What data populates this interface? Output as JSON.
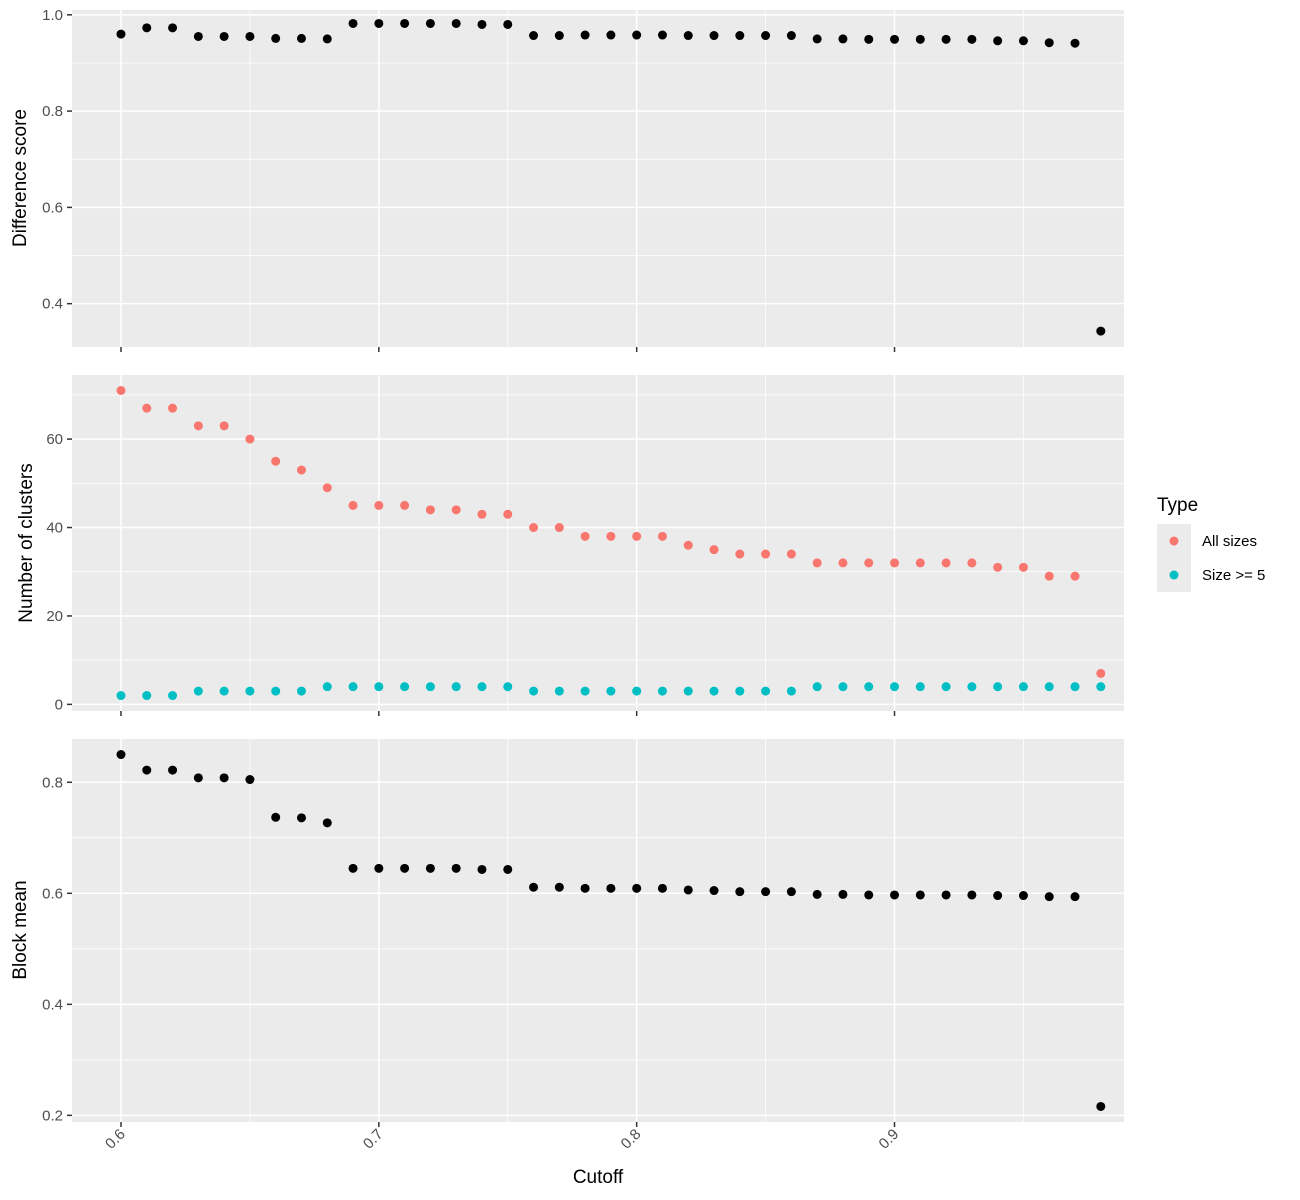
{
  "chart_data": {
    "type": "scatter",
    "x": {
      "label": "Cutoff",
      "range": [
        0.581,
        0.989
      ],
      "ticks": [
        0.6,
        0.7,
        0.8,
        0.9
      ],
      "tick_labels": [
        "0.6",
        "0.7",
        "0.8",
        "0.9"
      ],
      "minor_ticks": [
        0.65,
        0.75,
        0.85,
        0.95
      ],
      "tick_label_rotation": "45 degrees",
      "values": [
        0.6,
        0.61,
        0.62,
        0.63,
        0.64,
        0.65,
        0.66,
        0.67,
        0.68,
        0.69,
        0.7,
        0.71,
        0.72,
        0.73,
        0.74,
        0.75,
        0.76,
        0.77,
        0.78,
        0.79,
        0.8,
        0.81,
        0.82,
        0.83,
        0.84,
        0.85,
        0.86,
        0.87,
        0.88,
        0.89,
        0.9,
        0.91,
        0.92,
        0.93,
        0.94,
        0.95,
        0.96,
        0.97,
        0.98
      ]
    },
    "panels": [
      {
        "id": "difference",
        "ylabel": "Difference score",
        "ylim": [
          0.31,
          1.01
        ],
        "yticks": [
          0.4,
          0.6,
          0.8,
          1.0
        ],
        "ytick_labels": [
          "0.4",
          "0.6",
          "0.8",
          "1.0"
        ],
        "yminor": [
          0.3,
          0.5,
          0.7,
          0.9
        ],
        "series": [
          {
            "color": "#000000",
            "values": [
              0.96,
              0.973,
              0.973,
              0.955,
              0.955,
              0.955,
              0.951,
              0.951,
              0.95,
              0.982,
              0.982,
              0.982,
              0.982,
              0.982,
              0.98,
              0.98,
              0.957,
              0.957,
              0.958,
              0.958,
              0.958,
              0.958,
              0.957,
              0.957,
              0.957,
              0.957,
              0.957,
              0.95,
              0.95,
              0.949,
              0.949,
              0.949,
              0.949,
              0.949,
              0.946,
              0.946,
              0.942,
              0.941,
              0.343
            ]
          }
        ]
      },
      {
        "id": "clusters",
        "ylabel": "Number of clusters",
        "ylim": [
          -1.5,
          74.5
        ],
        "yticks": [
          0,
          20,
          40,
          60
        ],
        "ytick_labels": [
          "0",
          "20",
          "40",
          "60"
        ],
        "yminor": [
          10,
          30,
          50,
          70
        ],
        "series": [
          {
            "name": "All sizes",
            "color": "#F8766D",
            "values": [
              71,
              67,
              67,
              63,
              63,
              60,
              55,
              53,
              49,
              45,
              45,
              45,
              44,
              44,
              43,
              43,
              40,
              40,
              38,
              38,
              38,
              38,
              36,
              35,
              34,
              34,
              34,
              32,
              32,
              32,
              32,
              32,
              32,
              32,
              31,
              31,
              29,
              29,
              7
            ]
          },
          {
            "name": "Size >= 5",
            "color": "#00BFC4",
            "values": [
              2,
              2,
              2,
              3,
              3,
              3,
              3,
              3,
              4,
              4,
              4,
              4,
              4,
              4,
              4,
              4,
              3,
              3,
              3,
              3,
              3,
              3,
              3,
              3,
              3,
              3,
              3,
              4,
              4,
              4,
              4,
              4,
              4,
              4,
              4,
              4,
              4,
              4,
              4
            ]
          }
        ]
      },
      {
        "id": "blockmean",
        "ylabel": "Block mean",
        "ylim": [
          0.188,
          0.878
        ],
        "yticks": [
          0.2,
          0.4,
          0.6,
          0.8
        ],
        "ytick_labels": [
          "0.2",
          "0.4",
          "0.6",
          "0.8"
        ],
        "yminor": [
          0.3,
          0.5,
          0.7
        ],
        "series": [
          {
            "color": "#000000",
            "values": [
              0.85,
              0.822,
              0.822,
              0.808,
              0.808,
              0.805,
              0.737,
              0.736,
              0.727,
              0.645,
              0.645,
              0.645,
              0.645,
              0.645,
              0.643,
              0.643,
              0.611,
              0.611,
              0.609,
              0.609,
              0.609,
              0.609,
              0.606,
              0.605,
              0.603,
              0.603,
              0.603,
              0.598,
              0.598,
              0.597,
              0.597,
              0.597,
              0.597,
              0.597,
              0.596,
              0.596,
              0.594,
              0.594,
              0.216
            ]
          }
        ]
      }
    ],
    "legend": {
      "title": "Type",
      "position": "right",
      "entries": [
        {
          "label": "All sizes",
          "color": "#F8766D"
        },
        {
          "label": "Size >= 5",
          "color": "#00BFC4"
        }
      ]
    },
    "grid": true
  }
}
